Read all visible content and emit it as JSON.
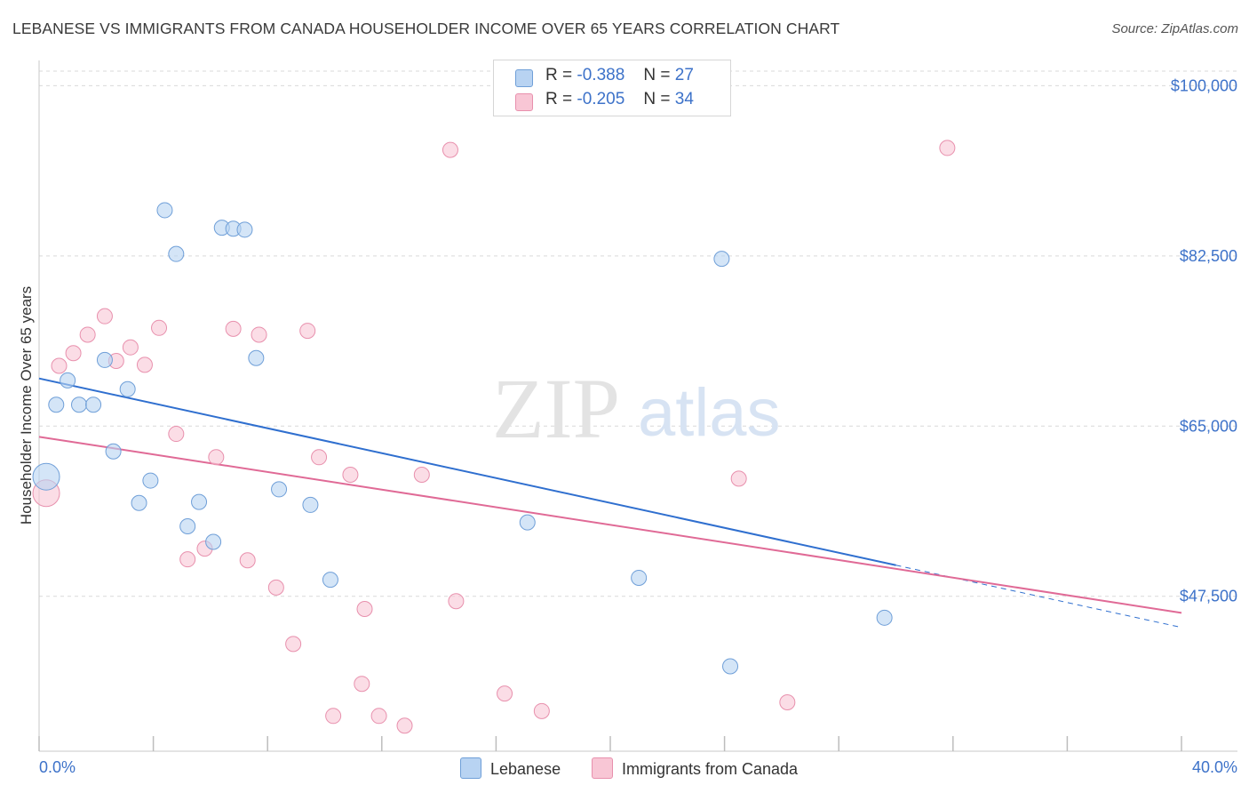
{
  "title": "LEBANESE VS IMMIGRANTS FROM CANADA HOUSEHOLDER INCOME OVER 65 YEARS CORRELATION CHART",
  "source": "Source: ZipAtlas.com",
  "watermark": {
    "zip": "ZIP",
    "atlas": "atlas"
  },
  "colors": {
    "lebanese_fill": "#b8d3f2",
    "lebanese_stroke": "#6f9fd8",
    "lebanese_line": "#2f6fcf",
    "canada_fill": "#f8c6d5",
    "canada_stroke": "#e890ad",
    "canada_line": "#e06a96",
    "tick_label": "#3d72c9",
    "grid": "#d9d9d9"
  },
  "legend": {
    "rows": [
      {
        "r_label": "R =",
        "r_value": "-0.388",
        "n_label": "N =",
        "n_value": "27"
      },
      {
        "r_label": "R =",
        "r_value": "-0.205",
        "n_label": "N =",
        "n_value": "34"
      }
    ]
  },
  "bottom_legend": {
    "lebanese": "Lebanese",
    "canada": "Immigrants from Canada"
  },
  "chart_data": {
    "type": "scatter",
    "xlabel": "",
    "ylabel": "Householder Income Over 65 years",
    "xlim": [
      0,
      40
    ],
    "ylim": [
      33400,
      101500
    ],
    "x_tick_labels": {
      "min": "0.0%",
      "max": "40.0%"
    },
    "y_ticks": [
      {
        "value": 47500,
        "label": "$47,500"
      },
      {
        "value": 65000,
        "label": "$65,000"
      },
      {
        "value": 82500,
        "label": "$82,500"
      },
      {
        "value": 100000,
        "label": "$100,000"
      }
    ],
    "grid": "horizontal dashed",
    "legend_position": "top-center",
    "series": [
      {
        "name": "Lebanese",
        "points": [
          [
            0.25,
            59.8
          ],
          [
            0.6,
            67.2
          ],
          [
            1.0,
            69.7
          ],
          [
            1.4,
            67.2
          ],
          [
            1.9,
            67.2
          ],
          [
            2.3,
            71.8
          ],
          [
            2.6,
            62.4
          ],
          [
            3.1,
            68.8
          ],
          [
            3.5,
            57.1
          ],
          [
            3.9,
            59.4
          ],
          [
            4.4,
            87.2
          ],
          [
            4.8,
            82.7
          ],
          [
            5.2,
            54.7
          ],
          [
            5.6,
            57.2
          ],
          [
            6.1,
            53.1
          ],
          [
            6.4,
            85.4
          ],
          [
            6.8,
            85.3
          ],
          [
            7.2,
            85.2
          ],
          [
            7.6,
            72.0
          ],
          [
            8.4,
            58.5
          ],
          [
            9.5,
            56.9
          ],
          [
            10.2,
            49.2
          ],
          [
            17.1,
            55.1
          ],
          [
            21.0,
            49.4
          ],
          [
            23.9,
            82.2
          ],
          [
            24.2,
            40.3
          ],
          [
            29.6,
            45.3
          ]
        ],
        "trend": {
          "x": [
            0,
            30.0
          ],
          "y": [
            69.9,
            50.7
          ]
        },
        "trend_extension": {
          "x": [
            30.0,
            40.0
          ],
          "y": [
            50.7,
            44.3
          ]
        }
      },
      {
        "name": "Immigrants from Canada",
        "points": [
          [
            0.25,
            58.1
          ],
          [
            0.7,
            71.2
          ],
          [
            1.2,
            72.5
          ],
          [
            1.7,
            74.4
          ],
          [
            2.3,
            76.3
          ],
          [
            2.7,
            71.7
          ],
          [
            3.2,
            73.1
          ],
          [
            3.7,
            71.3
          ],
          [
            4.2,
            75.1
          ],
          [
            4.8,
            64.2
          ],
          [
            5.2,
            51.3
          ],
          [
            5.8,
            52.4
          ],
          [
            6.2,
            61.8
          ],
          [
            6.8,
            75.0
          ],
          [
            7.3,
            51.2
          ],
          [
            7.7,
            74.4
          ],
          [
            8.3,
            48.4
          ],
          [
            8.9,
            42.6
          ],
          [
            9.4,
            74.8
          ],
          [
            9.8,
            61.8
          ],
          [
            10.3,
            35.2
          ],
          [
            10.9,
            60.0
          ],
          [
            11.3,
            38.5
          ],
          [
            11.4,
            46.2
          ],
          [
            11.9,
            35.2
          ],
          [
            12.8,
            34.2
          ],
          [
            13.4,
            60.0
          ],
          [
            14.4,
            93.4
          ],
          [
            14.6,
            47.0
          ],
          [
            16.3,
            37.5
          ],
          [
            17.6,
            35.7
          ],
          [
            24.5,
            59.6
          ],
          [
            26.2,
            36.6
          ],
          [
            31.8,
            93.6
          ]
        ],
        "trend": {
          "x": [
            0,
            40.0
          ],
          "y": [
            63.9,
            45.8
          ]
        }
      }
    ]
  }
}
